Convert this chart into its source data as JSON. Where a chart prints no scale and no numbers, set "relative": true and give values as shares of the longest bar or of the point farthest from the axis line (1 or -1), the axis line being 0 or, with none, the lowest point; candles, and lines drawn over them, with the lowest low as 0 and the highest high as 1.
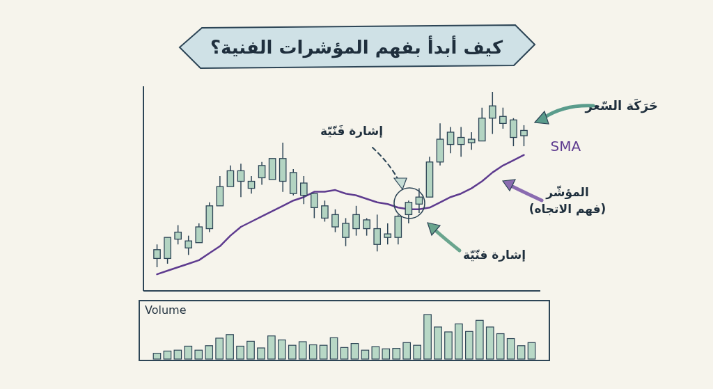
{
  "chart_data": [
    {
      "type": "candlestick",
      "title": "كيف أبدأ بفهم المؤشرات الفنية؟",
      "relative": true,
      "tick_labels": false,
      "color": "#b3d4c2",
      "categories": [
        null,
        null,
        null,
        null,
        null,
        null,
        null,
        null,
        null,
        null,
        null,
        null,
        null,
        null,
        null,
        null,
        null,
        null,
        null,
        null,
        null,
        null,
        null,
        null,
        null,
        null,
        null,
        null,
        null,
        null,
        null,
        null,
        null,
        null,
        null,
        null
      ],
      "ohlc": [
        [
          0.05,
          0.13,
          0,
          0.1
        ],
        [
          0.05,
          0.17,
          0.02,
          0.17
        ],
        [
          0.16,
          0.24,
          0.13,
          0.2
        ],
        [
          0.11,
          0.18,
          0.07,
          0.15
        ],
        [
          0.14,
          0.25,
          0.14,
          0.23
        ],
        [
          0.22,
          0.37,
          0.2,
          0.35
        ],
        [
          0.35,
          0.52,
          0.35,
          0.46
        ],
        [
          0.46,
          0.58,
          0.46,
          0.55
        ],
        [
          0.49,
          0.59,
          0.4,
          0.55
        ],
        [
          0.45,
          0.52,
          0.42,
          0.49
        ],
        [
          0.51,
          0.6,
          0.47,
          0.58
        ],
        [
          0.5,
          0.62,
          0.5,
          0.62
        ],
        [
          0.49,
          0.71,
          0.43,
          0.62
        ],
        [
          0.42,
          0.56,
          0.41,
          0.54
        ],
        [
          0.41,
          0.52,
          0.36,
          0.48
        ],
        [
          0.34,
          0.42,
          0.28,
          0.42
        ],
        [
          0.28,
          0.38,
          0.26,
          0.35
        ],
        [
          0.23,
          0.33,
          0.2,
          0.3
        ],
        [
          0.17,
          0.28,
          0.12,
          0.25
        ],
        [
          0.22,
          0.35,
          0.18,
          0.3
        ],
        [
          0.22,
          0.28,
          0.18,
          0.27
        ],
        [
          0.13,
          0.3,
          0.09,
          0.22
        ],
        [
          0.17,
          0.25,
          0.13,
          0.19
        ],
        [
          0.17,
          0.3,
          0.13,
          0.29
        ],
        [
          0.3,
          0.38,
          0.25,
          0.37
        ],
        [
          0.36,
          0.45,
          0.31,
          0.4
        ],
        [
          0.4,
          0.63,
          0.4,
          0.6
        ],
        [
          0.6,
          0.82,
          0.58,
          0.73
        ],
        [
          0.7,
          0.8,
          0.65,
          0.77
        ],
        [
          0.7,
          0.8,
          0.63,
          0.74
        ],
        [
          0.71,
          0.77,
          0.67,
          0.73
        ],
        [
          0.72,
          0.91,
          0.72,
          0.85
        ],
        [
          0.85,
          1,
          0.76,
          0.92
        ],
        [
          0.82,
          0.91,
          0.79,
          0.86
        ],
        [
          0.74,
          0.85,
          0.69,
          0.84
        ],
        [
          0.75,
          0.81,
          0.69,
          0.78
        ]
      ],
      "series": [
        {
          "name": "SMA",
          "type": "line",
          "color": "#5e3b8f",
          "values": [
            -0.04,
            -0.02,
            0,
            0.02,
            0.04,
            0.08,
            0.12,
            0.18,
            0.23,
            0.26,
            0.29,
            0.32,
            0.35,
            0.38,
            0.4,
            0.43,
            0.43,
            0.44,
            0.42,
            0.41,
            0.39,
            0.37,
            0.36,
            0.34,
            0.33,
            0.33,
            0.34,
            0.37,
            0.4,
            0.42,
            0.45,
            0.49,
            0.54,
            0.58,
            0.61,
            0.64
          ]
        }
      ],
      "annotations": [
        "حَرَكَة السّعر",
        "إشارة فَنّيّة",
        "المؤشّر\n(فهم الاتجاه)",
        "إشارة فنّيّة"
      ]
    },
    {
      "type": "bar",
      "title": "Volume",
      "relative": true,
      "tick_labels": false,
      "color": "#b8d8c6",
      "categories": [
        null,
        null,
        null,
        null,
        null,
        null,
        null,
        null,
        null,
        null,
        null,
        null,
        null,
        null,
        null,
        null,
        null,
        null,
        null,
        null,
        null,
        null,
        null,
        null,
        null,
        null,
        null,
        null,
        null,
        null,
        null,
        null,
        null,
        null,
        null,
        null,
        null
      ],
      "values": [
        0.13,
        0.18,
        0.2,
        0.29,
        0.2,
        0.3,
        0.47,
        0.55,
        0.29,
        0.4,
        0.25,
        0.52,
        0.43,
        0.31,
        0.39,
        0.32,
        0.31,
        0.48,
        0.26,
        0.35,
        0.2,
        0.28,
        0.23,
        0.24,
        0.37,
        0.31,
        1,
        0.72,
        0.61,
        0.79,
        0.62,
        0.87,
        0.72,
        0.57,
        0.46,
        0.3,
        0.37
      ]
    }
  ]
}
